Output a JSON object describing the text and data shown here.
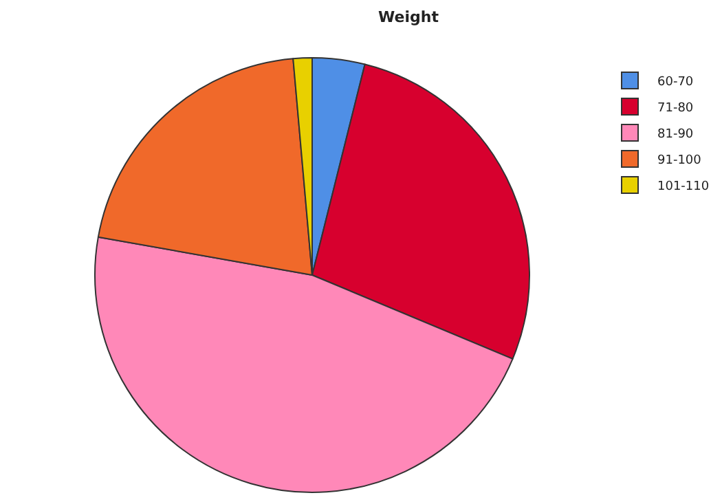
{
  "chart_data": {
    "type": "pie",
    "title": "Weight",
    "categories": [
      "60-70",
      "71-80",
      "81-90",
      "91-100",
      "101-110"
    ],
    "values": [
      3.9,
      27.4,
      46.5,
      20.8,
      1.4
    ],
    "colors": [
      "#4f8fe6",
      "#d7002e",
      "#ff88b8",
      "#f0692a",
      "#e8d000"
    ],
    "legend": "top right"
  }
}
